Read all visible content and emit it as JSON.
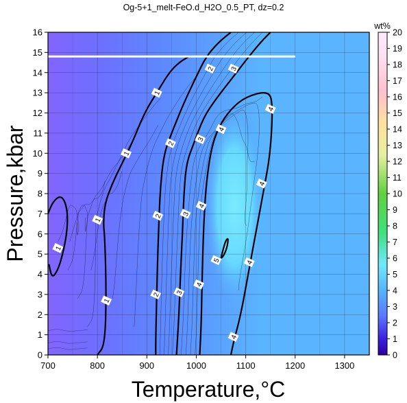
{
  "chart_data": {
    "type": "contour",
    "title": "Og-5+1_melt-FeO.d_H2O_0.5_PT, dz=0.2",
    "xlabel": "Temperature,°C",
    "ylabel": "Pressure,kbar",
    "xlim": [
      700,
      1350
    ],
    "ylim": [
      0,
      16
    ],
    "xticks": [
      "700",
      "800",
      "900",
      "1000",
      "1100",
      "1200",
      "1300"
    ],
    "yticks": [
      "0",
      "1",
      "2",
      "3",
      "4",
      "5",
      "6",
      "7",
      "8",
      "9",
      "10",
      "11",
      "12",
      "13",
      "14",
      "15",
      "16"
    ],
    "grid": true,
    "colorbar": {
      "label": "wt%",
      "range": [
        0,
        20
      ],
      "ticks": [
        "0",
        "1",
        "2",
        "3",
        "4",
        "5",
        "6",
        "7",
        "8",
        "9",
        "10",
        "11",
        "12",
        "13",
        "14",
        "15",
        "16",
        "17",
        "18",
        "19",
        "20"
      ]
    },
    "contour_levels": [
      1,
      2,
      3,
      4,
      5
    ],
    "contours": [
      {
        "level": 1,
        "points": [
          [
            800,
            0
          ],
          [
            815,
            0.5
          ],
          [
            818,
            3
          ],
          [
            815,
            5.8
          ],
          [
            812,
            6.5
          ],
          [
            815,
            7.5
          ],
          [
            830,
            8.5
          ],
          [
            850,
            9.5
          ],
          [
            870,
            10.5
          ],
          [
            895,
            12
          ],
          [
            920,
            13
          ],
          [
            945,
            14
          ],
          [
            965,
            14.5
          ],
          [
            985,
            14.8
          ]
        ]
      },
      {
        "level": 1,
        "points": [
          [
            700,
            7
          ],
          [
            710,
            7.6
          ],
          [
            725,
            7.9
          ],
          [
            735,
            7.6
          ],
          [
            740,
            6.9
          ],
          [
            738,
            6
          ],
          [
            730,
            5
          ],
          [
            720,
            4.2
          ],
          [
            708,
            3.8
          ],
          [
            702,
            4.5
          ]
        ]
      },
      {
        "level": 2,
        "points": [
          [
            918,
            0
          ],
          [
            918,
            0.8
          ],
          [
            920,
            3
          ],
          [
            922,
            5
          ],
          [
            925,
            7
          ],
          [
            928,
            8.5
          ],
          [
            935,
            10
          ],
          [
            950,
            11
          ],
          [
            975,
            12.5
          ],
          [
            1000,
            13.8
          ],
          [
            1020,
            14.8
          ],
          [
            1045,
            15.5
          ],
          [
            1070,
            16
          ]
        ]
      },
      {
        "level": 3,
        "points": [
          [
            960,
            0
          ],
          [
            965,
            2
          ],
          [
            968,
            4
          ],
          [
            972,
            6
          ],
          [
            975,
            8
          ],
          [
            980,
            9.5
          ],
          [
            995,
            10.5
          ],
          [
            1015,
            11.8
          ],
          [
            1040,
            12.7
          ],
          [
            1075,
            13.8
          ],
          [
            1100,
            14.6
          ],
          [
            1130,
            15.5
          ],
          [
            1150,
            16
          ]
        ]
      },
      {
        "level": 4,
        "points": [
          [
            1007,
            0
          ],
          [
            1010,
            1.5
          ],
          [
            1012,
            4
          ],
          [
            1015,
            6.5
          ],
          [
            1020,
            8.5
          ],
          [
            1030,
            10.2
          ],
          [
            1045,
            11.3
          ],
          [
            1070,
            12.2
          ],
          [
            1100,
            12.8
          ],
          [
            1145,
            13.1
          ],
          [
            1155,
            12.5
          ],
          [
            1150,
            10
          ],
          [
            1135,
            8
          ],
          [
            1120,
            6
          ],
          [
            1105,
            4
          ],
          [
            1090,
            2
          ],
          [
            1075,
            0.6
          ],
          [
            1070,
            0
          ]
        ]
      },
      {
        "level": 5,
        "points": [
          [
            1050,
            4.8
          ],
          [
            1055,
            5.3
          ],
          [
            1060,
            5.7
          ],
          [
            1065,
            5.8
          ],
          [
            1062,
            5.3
          ],
          [
            1055,
            4.9
          ],
          [
            1050,
            4.8
          ]
        ]
      }
    ],
    "contour_labels": [
      {
        "text": "1",
        "x": 920,
        "y": 13.0
      },
      {
        "text": "1",
        "x": 858,
        "y": 10.0
      },
      {
        "text": "1",
        "x": 800,
        "y": 6.7
      },
      {
        "text": "1",
        "x": 720,
        "y": 5.3
      },
      {
        "text": "1",
        "x": 818,
        "y": 2.7
      },
      {
        "text": "2",
        "x": 1028,
        "y": 14.2
      },
      {
        "text": "2",
        "x": 948,
        "y": 10.5
      },
      {
        "text": "2",
        "x": 922,
        "y": 6.9
      },
      {
        "text": "2",
        "x": 918,
        "y": 3.0
      },
      {
        "text": "3",
        "x": 1075,
        "y": 14.2
      },
      {
        "text": "3",
        "x": 1008,
        "y": 10.7
      },
      {
        "text": "3",
        "x": 978,
        "y": 7.0
      },
      {
        "text": "3",
        "x": 965,
        "y": 3.1
      },
      {
        "text": "4",
        "x": 1150,
        "y": 12.2
      },
      {
        "text": "4",
        "x": 1050,
        "y": 11.2
      },
      {
        "text": "4",
        "x": 1010,
        "y": 7.4
      },
      {
        "text": "4",
        "x": 1005,
        "y": 3.5
      },
      {
        "text": "4",
        "x": 1132,
        "y": 8.5
      },
      {
        "text": "4",
        "x": 1107,
        "y": 4.6
      },
      {
        "text": "4",
        "x": 1075,
        "y": 0.9
      },
      {
        "text": "5",
        "x": 1040,
        "y": 4.7
      }
    ],
    "white_line": {
      "x": [
        700,
        1200
      ],
      "y": 14.8
    },
    "fill_colors": {
      "low": "#7777ff",
      "mid": "#5aa8ff",
      "high": "#66f0ff",
      "top_left": "#8866ff"
    }
  }
}
